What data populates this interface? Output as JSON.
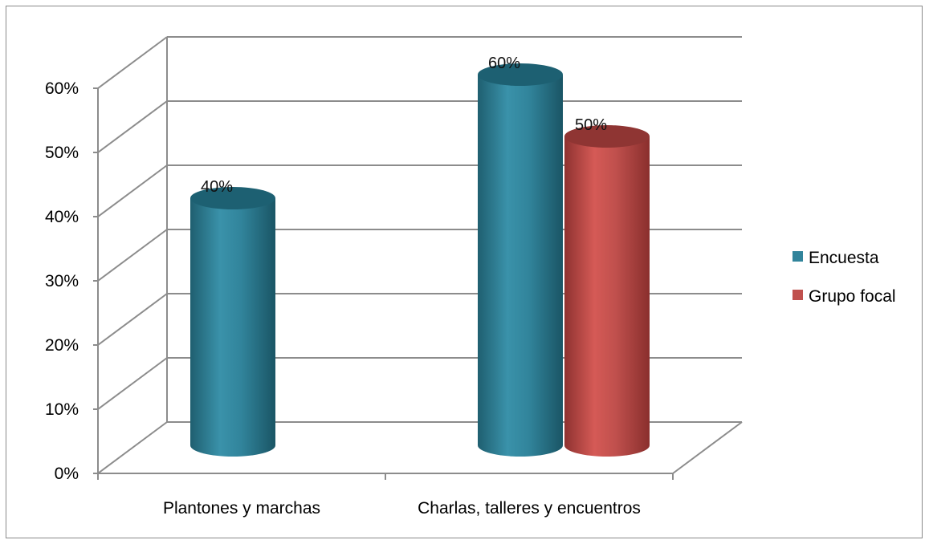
{
  "chart_data": {
    "type": "bar",
    "style": "3d-cylinder",
    "categories": [
      "Plantones y marchas",
      "Charlas, talleres y encuentros"
    ],
    "series": [
      {
        "name": "Encuesta",
        "color": "#31849b",
        "values": [
          40,
          60
        ],
        "labels": [
          "40%",
          "60%"
        ]
      },
      {
        "name": "Grupo focal",
        "color": "#c0504d",
        "values": [
          null,
          50
        ],
        "labels": [
          "",
          "50%"
        ]
      }
    ],
    "ylim": [
      0,
      60
    ],
    "yticks": [
      0,
      10,
      20,
      30,
      40,
      50,
      60
    ],
    "ytick_labels": [
      "0%",
      "10%",
      "20%",
      "30%",
      "40%",
      "50%",
      "60%"
    ],
    "grid": true,
    "legend_position": "right"
  }
}
